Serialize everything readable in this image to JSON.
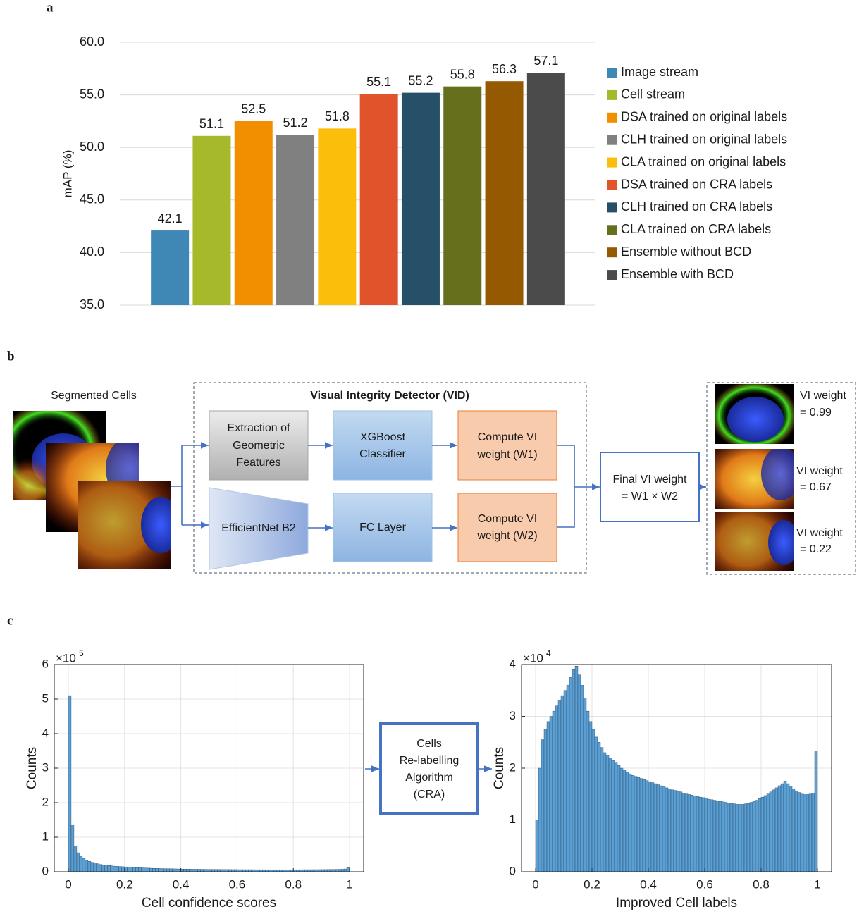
{
  "panel_labels": [
    "a",
    "b",
    "c"
  ],
  "chart_data": [
    {
      "type": "bar",
      "ylabel": "mAP (%)",
      "categories": [
        "Image stream",
        "Cell stream",
        "DSA trained on original labels",
        "CLH trained on original labels",
        "CLA trained on original labels",
        "DSA trained on CRA labels",
        "CLH trained on CRA labels",
        "CLA trained on CRA labels",
        "Ensemble without BCD",
        "Ensemble with BCD"
      ],
      "values": [
        42.1,
        51.1,
        52.5,
        51.2,
        51.8,
        55.1,
        55.2,
        55.8,
        56.3,
        57.1
      ],
      "colors": [
        "#3f88b5",
        "#a5b92a",
        "#f28f00",
        "#808080",
        "#fbbf0b",
        "#e1532a",
        "#265068",
        "#66701c",
        "#955902",
        "#4b4b4b"
      ],
      "ylim": [
        35,
        60
      ],
      "yticks": [
        {
          "value": 35,
          "label": "35.0"
        },
        {
          "value": 40,
          "label": "40.0"
        },
        {
          "value": 45,
          "label": "45.0"
        },
        {
          "value": 50,
          "label": "50.0"
        },
        {
          "value": 55,
          "label": "55.0"
        },
        {
          "value": 60,
          "label": "60.0"
        }
      ],
      "grid": true,
      "legend": "right"
    },
    {
      "type": "histogram",
      "xlabel": "Cell confidence scores",
      "ylabel": "Counts",
      "y_multiplier": "×10",
      "y_exponent": "5",
      "color": "#5b9fd3",
      "grid": true,
      "bins": [
        0,
        0.01,
        0.02,
        0.03,
        0.04,
        0.05,
        0.06,
        0.07,
        0.08,
        0.09,
        0.1,
        0.11,
        0.12,
        0.13,
        0.14,
        0.15,
        0.16,
        0.17,
        0.18,
        0.19,
        0.2,
        0.21,
        0.22,
        0.23,
        0.24,
        0.25,
        0.26,
        0.27,
        0.28,
        0.29,
        0.3,
        0.31,
        0.32,
        0.33,
        0.34,
        0.35,
        0.36,
        0.37,
        0.38,
        0.39,
        0.4,
        0.41,
        0.42,
        0.43,
        0.44,
        0.45,
        0.46,
        0.47,
        0.48,
        0.49,
        0.5,
        0.51,
        0.52,
        0.53,
        0.54,
        0.55,
        0.56,
        0.57,
        0.58,
        0.59,
        0.6,
        0.61,
        0.62,
        0.63,
        0.64,
        0.65,
        0.66,
        0.67,
        0.68,
        0.69,
        0.7,
        0.71,
        0.72,
        0.73,
        0.74,
        0.75,
        0.76,
        0.77,
        0.78,
        0.79,
        0.8,
        0.81,
        0.82,
        0.83,
        0.84,
        0.85,
        0.86,
        0.87,
        0.88,
        0.89,
        0.9,
        0.91,
        0.92,
        0.93,
        0.94,
        0.95,
        0.96,
        0.97,
        0.98,
        0.99,
        1
      ],
      "values": [
        5.1,
        1.35,
        0.75,
        0.55,
        0.45,
        0.38,
        0.33,
        0.3,
        0.27,
        0.25,
        0.23,
        0.21,
        0.2,
        0.19,
        0.18,
        0.17,
        0.16,
        0.155,
        0.15,
        0.145,
        0.14,
        0.135,
        0.13,
        0.125,
        0.12,
        0.115,
        0.11,
        0.108,
        0.105,
        0.1,
        0.098,
        0.095,
        0.093,
        0.09,
        0.088,
        0.086,
        0.085,
        0.083,
        0.082,
        0.08,
        0.078,
        0.077,
        0.075,
        0.074,
        0.073,
        0.072,
        0.071,
        0.07,
        0.069,
        0.068,
        0.067,
        0.066,
        0.065,
        0.065,
        0.064,
        0.064,
        0.063,
        0.063,
        0.062,
        0.062,
        0.061,
        0.061,
        0.06,
        0.06,
        0.06,
        0.06,
        0.059,
        0.059,
        0.059,
        0.059,
        0.058,
        0.058,
        0.058,
        0.058,
        0.058,
        0.058,
        0.058,
        0.058,
        0.058,
        0.058,
        0.058,
        0.058,
        0.059,
        0.059,
        0.06,
        0.06,
        0.06,
        0.061,
        0.061,
        0.062,
        0.062,
        0.063,
        0.064,
        0.065,
        0.066,
        0.068,
        0.07,
        0.072,
        0.08,
        0.12
      ],
      "xlim": [
        -0.05,
        1.05
      ],
      "xticks": [
        0,
        0.2,
        0.4,
        0.6,
        0.8,
        1
      ],
      "ylim": [
        0,
        6
      ],
      "yticks": [
        0,
        1,
        2,
        3,
        4,
        5,
        6
      ]
    },
    {
      "type": "histogram",
      "xlabel": "Improved Cell labels",
      "ylabel": "Counts",
      "y_multiplier": "×10",
      "y_exponent": "4",
      "color": "#5b9fd3",
      "grid": true,
      "bins": [
        0,
        0.01,
        0.02,
        0.03,
        0.04,
        0.05,
        0.06,
        0.07,
        0.08,
        0.09,
        0.1,
        0.11,
        0.12,
        0.13,
        0.14,
        0.15,
        0.16,
        0.17,
        0.18,
        0.19,
        0.2,
        0.21,
        0.22,
        0.23,
        0.24,
        0.25,
        0.26,
        0.27,
        0.28,
        0.29,
        0.3,
        0.31,
        0.32,
        0.33,
        0.34,
        0.35,
        0.36,
        0.37,
        0.38,
        0.39,
        0.4,
        0.41,
        0.42,
        0.43,
        0.44,
        0.45,
        0.46,
        0.47,
        0.48,
        0.49,
        0.5,
        0.51,
        0.52,
        0.53,
        0.54,
        0.55,
        0.56,
        0.57,
        0.58,
        0.59,
        0.6,
        0.61,
        0.62,
        0.63,
        0.64,
        0.65,
        0.66,
        0.67,
        0.68,
        0.69,
        0.7,
        0.71,
        0.72,
        0.73,
        0.74,
        0.75,
        0.76,
        0.77,
        0.78,
        0.79,
        0.8,
        0.81,
        0.82,
        0.83,
        0.84,
        0.85,
        0.86,
        0.87,
        0.88,
        0.89,
        0.9,
        0.91,
        0.92,
        0.93,
        0.94,
        0.95,
        0.96,
        0.97,
        0.98,
        0.99,
        1
      ],
      "values": [
        1.0,
        2.0,
        2.55,
        2.75,
        2.9,
        3.0,
        3.1,
        3.2,
        3.3,
        3.4,
        3.5,
        3.6,
        3.75,
        3.9,
        3.97,
        3.8,
        3.6,
        3.35,
        3.1,
        2.9,
        2.75,
        2.6,
        2.5,
        2.4,
        2.3,
        2.25,
        2.2,
        2.15,
        2.1,
        2.05,
        2.0,
        1.96,
        1.92,
        1.89,
        1.86,
        1.84,
        1.82,
        1.8,
        1.78,
        1.76,
        1.74,
        1.72,
        1.7,
        1.68,
        1.66,
        1.64,
        1.62,
        1.6,
        1.58,
        1.57,
        1.55,
        1.54,
        1.52,
        1.5,
        1.49,
        1.48,
        1.46,
        1.45,
        1.44,
        1.43,
        1.42,
        1.4,
        1.39,
        1.38,
        1.37,
        1.36,
        1.35,
        1.34,
        1.33,
        1.32,
        1.31,
        1.3,
        1.3,
        1.3,
        1.31,
        1.32,
        1.34,
        1.36,
        1.38,
        1.41,
        1.44,
        1.47,
        1.5,
        1.54,
        1.58,
        1.62,
        1.66,
        1.7,
        1.75,
        1.7,
        1.65,
        1.6,
        1.56,
        1.53,
        1.5,
        1.49,
        1.49,
        1.5,
        1.52,
        2.33
      ],
      "xlim": [
        -0.05,
        1.05
      ],
      "xticks": [
        0,
        0.2,
        0.4,
        0.6,
        0.8,
        1
      ],
      "ylim": [
        0,
        4
      ],
      "yticks": [
        0,
        1,
        2,
        3,
        4
      ]
    }
  ],
  "diagram": {
    "title": "Visual Integrity Detector (VID)",
    "input_label": "Segmented Cells",
    "boxes": [
      {
        "lines": [
          "Extraction of",
          "Geometric",
          "Features"
        ]
      },
      {
        "lines": [
          "XGBoost",
          "Classifier"
        ]
      },
      {
        "lines": [
          "Compute VI",
          "weight (W1)"
        ]
      },
      {
        "lines": [
          "EfficientNet B2"
        ]
      },
      {
        "lines": [
          "FC Layer"
        ]
      },
      {
        "lines": [
          "Compute VI",
          "weight (W2)"
        ]
      },
      {
        "lines": [
          "Final VI weight",
          "= W1 × W2"
        ]
      }
    ],
    "outputs": [
      {
        "lines": [
          "VI weight",
          "= 0.99"
        ]
      },
      {
        "lines": [
          "VI weight",
          "= 0.67"
        ]
      },
      {
        "lines": [
          "VI weight",
          "= 0.22"
        ]
      }
    ]
  },
  "cra": {
    "lines": [
      "Cells",
      "Re-labelling",
      "Algorithm",
      "(CRA)"
    ]
  }
}
